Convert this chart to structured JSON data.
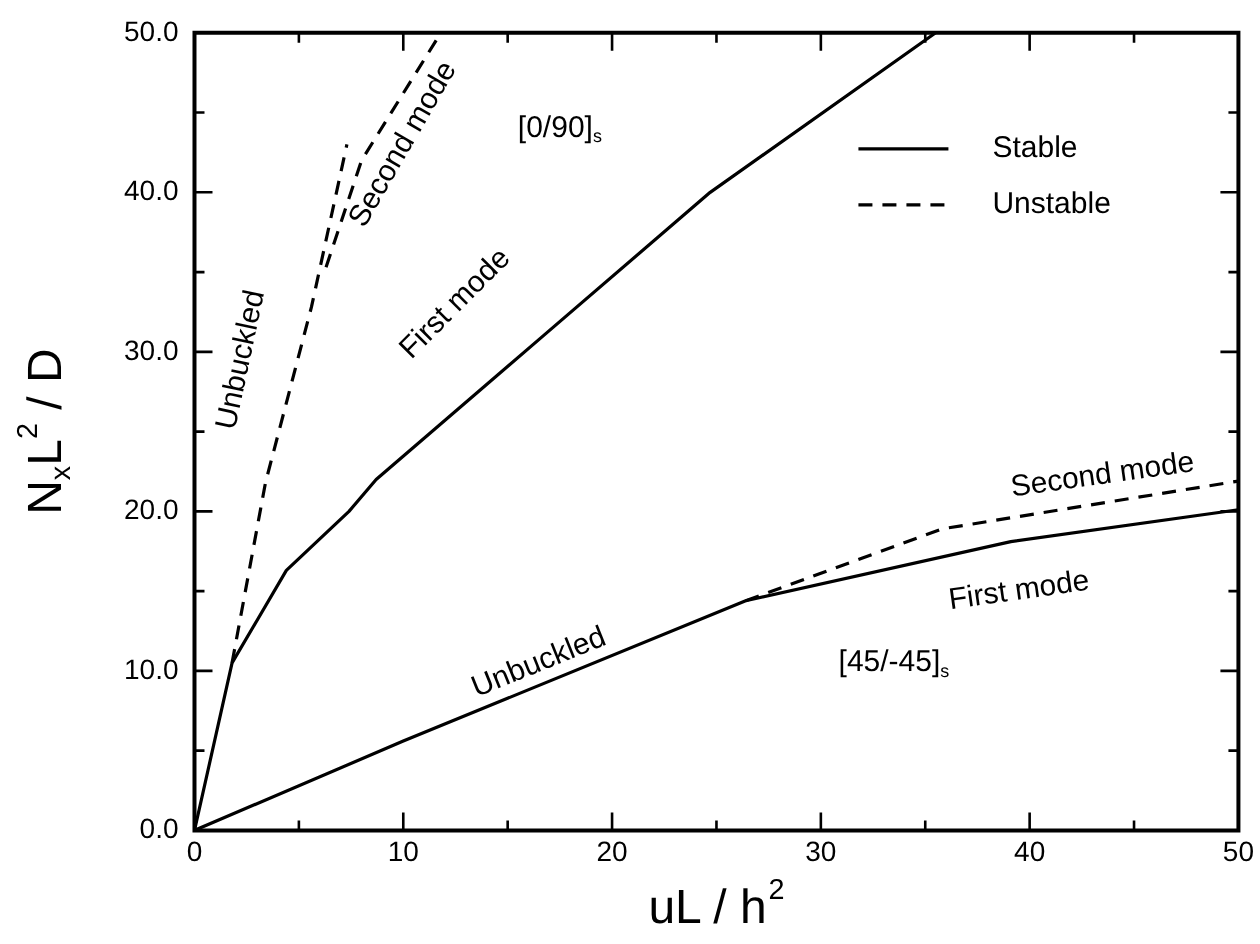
{
  "chart_data": {
    "type": "line",
    "xlabel": "uL / h$^{2}$",
    "ylabel": "N$_{x}$L$^{2}$ / D",
    "xlim": [
      0,
      50
    ],
    "ylim": [
      0,
      50
    ],
    "xticks": [
      0,
      {
        "value": 5,
        "label": null
      },
      10,
      {
        "value": 15,
        "label": null
      },
      20,
      {
        "value": 25,
        "label": null
      },
      30,
      {
        "value": 35,
        "label": null
      },
      40,
      {
        "value": 45,
        "label": null
      },
      50
    ],
    "yticks": [
      {
        "value": 0,
        "label": "0.0"
      },
      {
        "value": 5,
        "label": null
      },
      {
        "value": 10,
        "label": "10.0"
      },
      {
        "value": 15,
        "label": null
      },
      {
        "value": 20,
        "label": "20.0"
      },
      {
        "value": 25,
        "label": null
      },
      {
        "value": 30,
        "label": "30.0"
      },
      {
        "value": 35,
        "label": null
      },
      {
        "value": 40,
        "label": "40.0"
      },
      {
        "value": 45,
        "label": null
      },
      {
        "value": 50,
        "label": "50.0"
      }
    ],
    "grid": false,
    "legend": "top right",
    "marker": "none",
    "series": [
      {
        "name": "Stable",
        "color": "#000000",
        "line_style": "solid",
        "x": [
          0,
          1.8,
          4.4,
          7.4,
          8.7,
          16.7,
          24.7,
          35.5
        ],
        "values": [
          0,
          10.5,
          16.3,
          20,
          22,
          31,
          40,
          50
        ]
      },
      {
        "name": "Unstable",
        "color": "#000000",
        "line_style": "dashed",
        "x": [
          1.8,
          3.4,
          5.6,
          7.3
        ],
        "values": [
          10.5,
          21.8,
          32.8,
          43
        ]
      },
      {
        "color": "#000000",
        "line_style": "dashed",
        "x": [
          6.3,
          8,
          11.8
        ],
        "values": [
          35.3,
          42,
          50
        ]
      },
      {
        "color": "#000000",
        "line_style": "solid",
        "x": [
          0,
          10,
          26.4,
          39.1,
          50
        ],
        "values": [
          0,
          5.6,
          14.4,
          18.1,
          20.1
        ]
      },
      {
        "color": "#000000",
        "line_style": "dashed",
        "x": [
          26.4,
          35.8,
          50
        ],
        "values": [
          14.4,
          18.9,
          21.9
        ]
      }
    ],
    "annotations": [
      "Unbuckled",
      "Second mode",
      "[0/90]$_{s}$",
      "First mode",
      "Unbuckled",
      "Second mode",
      "First mode",
      "[45/-45]$_{s}$"
    ]
  }
}
